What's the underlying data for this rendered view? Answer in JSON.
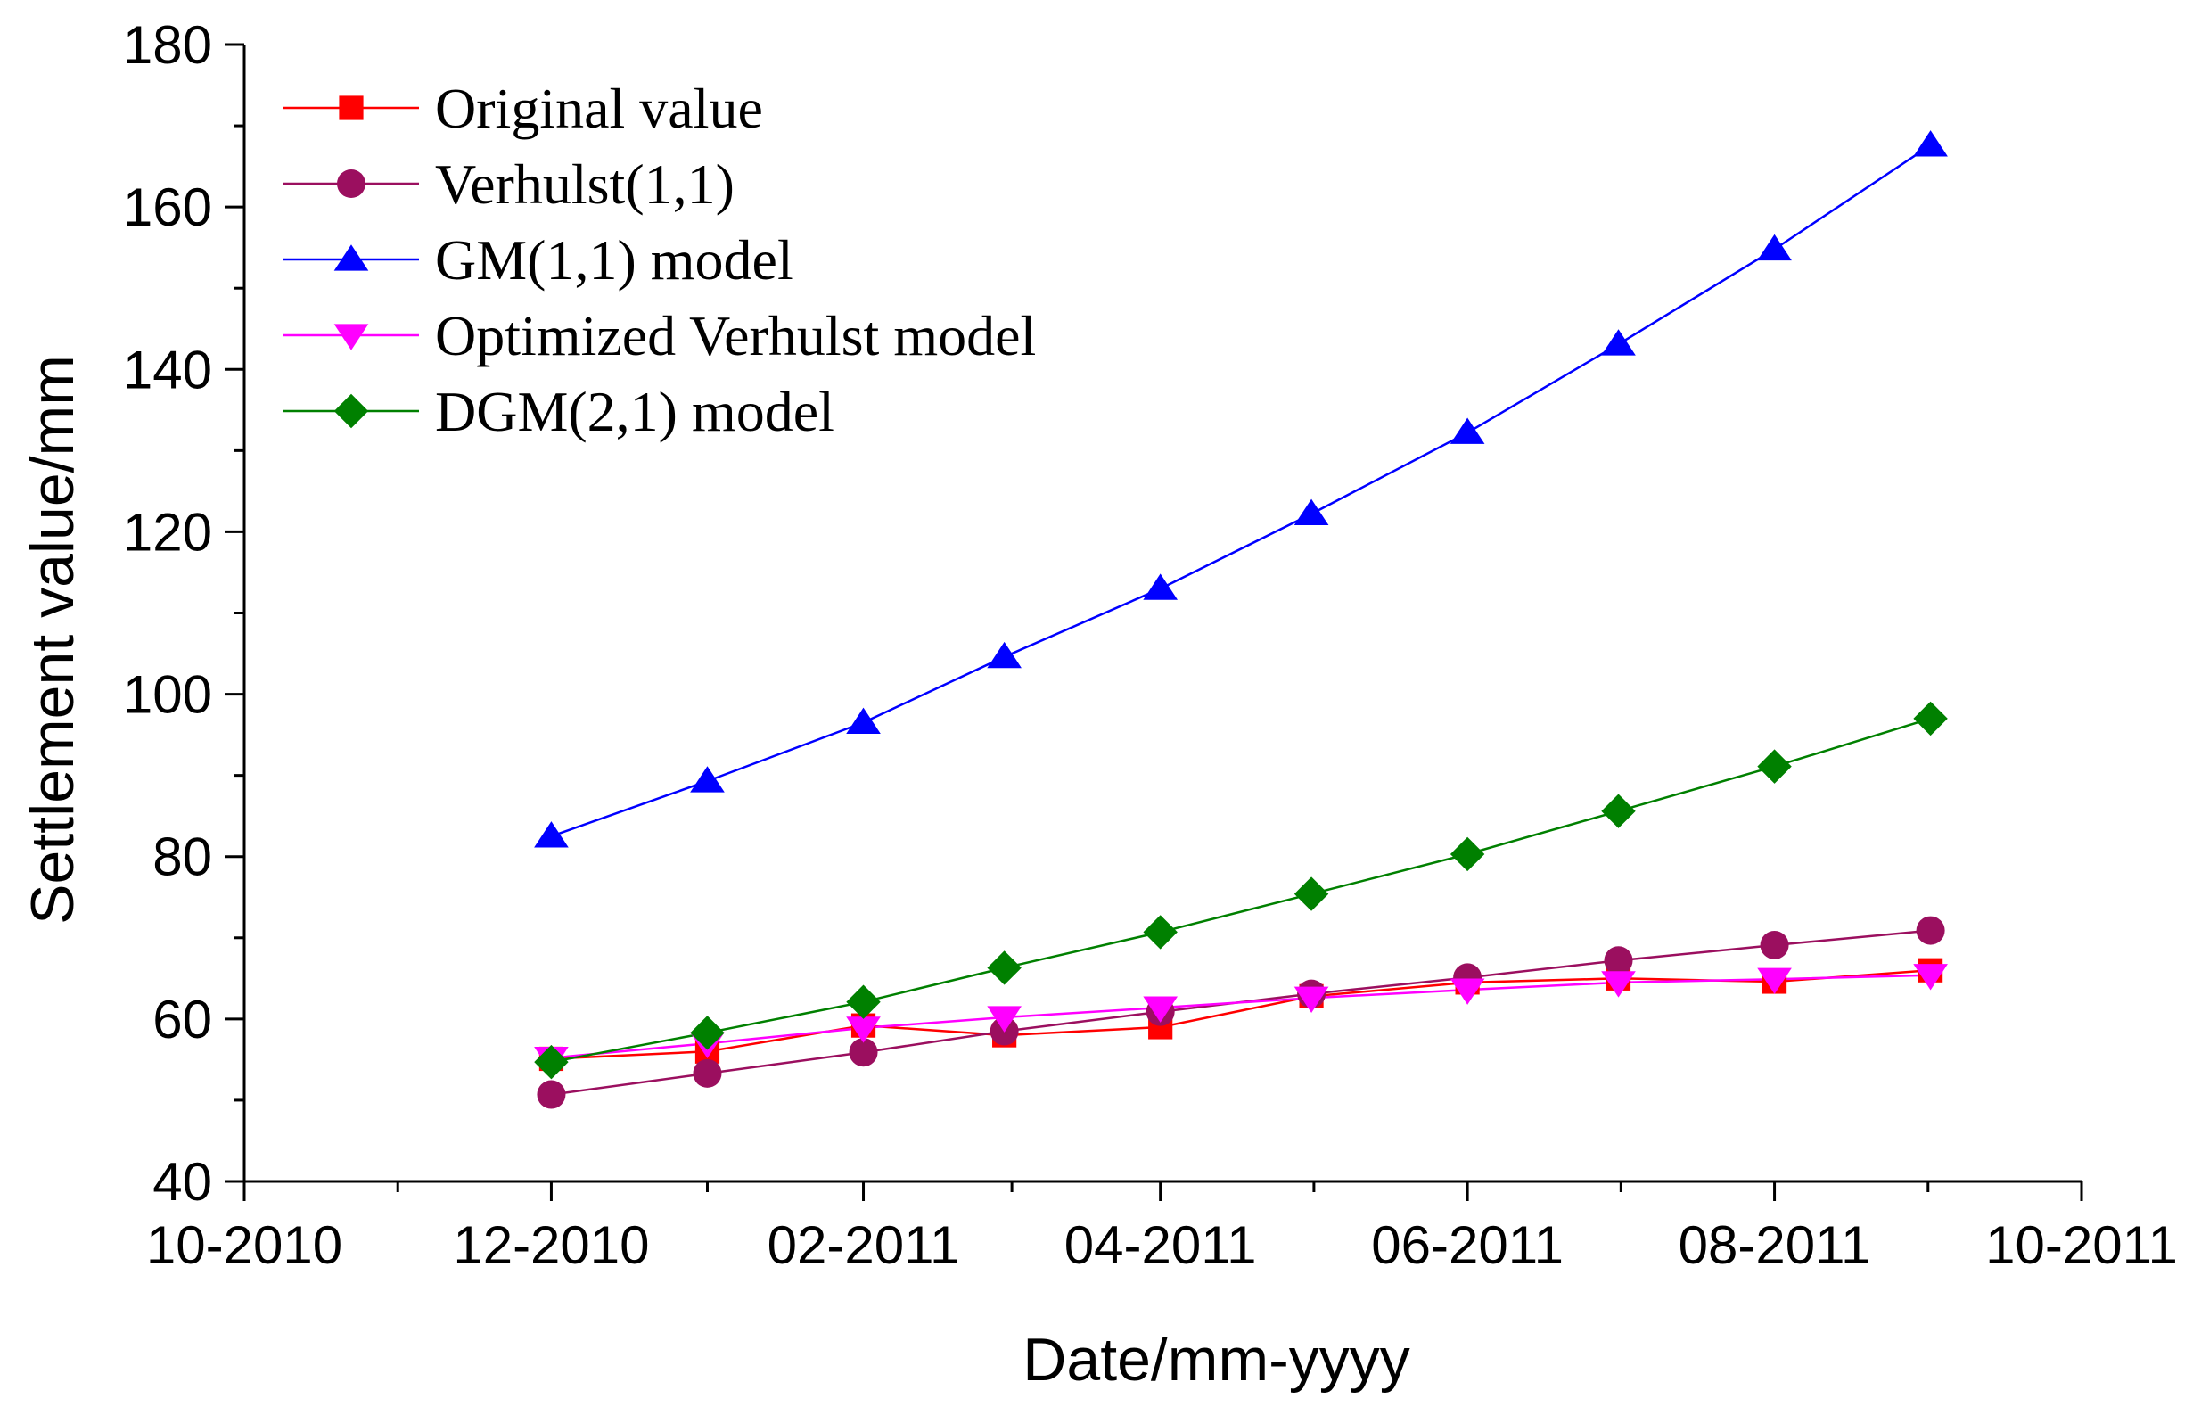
{
  "chart_data": {
    "type": "line",
    "title": "",
    "xlabel": "Date/mm-yyyy",
    "ylabel": "Settlement value/mm",
    "x_tick_labels": [
      "10-2010",
      "12-2010",
      "02-2011",
      "04-2011",
      "06-2011",
      "08-2011",
      "10-2011"
    ],
    "x_ticks": [
      "2010-10-01",
      "2010-12-01",
      "2011-02-01",
      "2011-04-01",
      "2011-06-01",
      "2011-08-01",
      "2011-10-01"
    ],
    "xlim": [
      "2010-10-01",
      "2011-10-01"
    ],
    "x": [
      "2010-12-01",
      "2011-01-01",
      "2011-02-01",
      "2011-03-01",
      "2011-04-01",
      "2011-05-01",
      "2011-06-01",
      "2011-07-01",
      "2011-08-01",
      "2011-09-01"
    ],
    "ylim": [
      40,
      180
    ],
    "y_ticks": [
      40,
      60,
      80,
      100,
      120,
      140,
      160,
      180
    ],
    "grid": false,
    "legend_position": "top-left",
    "series": [
      {
        "name": "Original value",
        "color": "#ff0000",
        "marker": "square",
        "values": [
          55.1,
          56.0,
          59.2,
          58.0,
          59.0,
          62.8,
          64.5,
          65.0,
          64.6,
          66.0
        ]
      },
      {
        "name": "Verhulst(1,1)",
        "color": "#9b0f5f",
        "marker": "circle",
        "values": [
          50.7,
          53.3,
          55.9,
          58.5,
          60.9,
          63.1,
          65.1,
          67.2,
          69.1,
          70.9
        ]
      },
      {
        "name": "GM(1,1) model",
        "color": "#0000ff",
        "marker": "triangle-up",
        "values": [
          82.5,
          89.3,
          96.5,
          104.6,
          113.0,
          122.2,
          132.2,
          143.1,
          154.8,
          167.6
        ]
      },
      {
        "name": "Optimized Verhulst model",
        "color": "#ff00ff",
        "marker": "triangle-down",
        "values": [
          55.2,
          57.0,
          58.9,
          60.2,
          61.4,
          62.6,
          63.6,
          64.5,
          64.9,
          65.4
        ]
      },
      {
        "name": "DGM(2,1)  model",
        "color": "#008000",
        "marker": "diamond",
        "values": [
          54.7,
          58.3,
          62.1,
          66.3,
          70.7,
          75.4,
          80.3,
          85.6,
          91.1,
          97.0
        ]
      }
    ]
  }
}
